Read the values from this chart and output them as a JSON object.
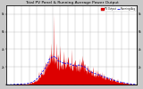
{
  "title": "Total PV Panel & Running Average Power Output",
  "title_fontsize": 3.2,
  "bg_color": "#c8c8c8",
  "plot_bg_color": "#ffffff",
  "bar_color": "#dd0000",
  "avg_line_color": "#0000ee",
  "grid_color": "#aaaaaa",
  "legend_pv_color": "#dd0000",
  "legend_avg_color": "#0000ee",
  "ytick_labels": [
    "8k",
    "6k",
    "4k",
    "2k",
    ""
  ],
  "num_points": 350,
  "seed": 17
}
